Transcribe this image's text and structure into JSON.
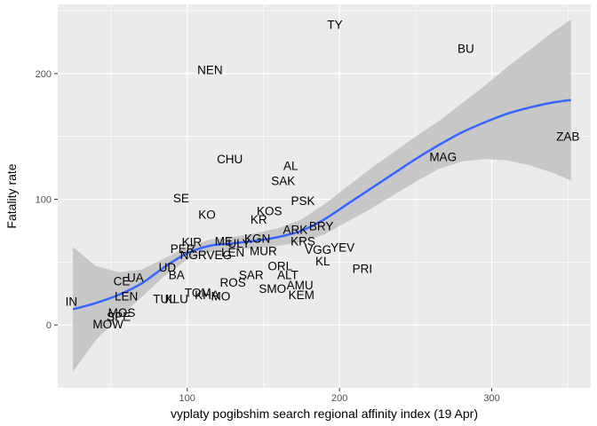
{
  "chart_data": {
    "type": "scatter",
    "xlabel": "vyplaty pogibshim search regional affinity index (19 Apr)",
    "ylabel": "Fatality rate",
    "xlim": [
      15,
      365
    ],
    "ylim": [
      -50,
      255
    ],
    "x_ticks": [
      100,
      200,
      300
    ],
    "y_ticks": [
      0,
      100,
      200
    ],
    "x_tick_labels": [
      "100",
      "200",
      "300"
    ],
    "y_tick_labels": [
      "0",
      "100",
      "200"
    ],
    "grid": true,
    "background": "#ebebeb",
    "smooth_color": "#3366ff",
    "ribbon_color": "#bebebe",
    "points": [
      {
        "label": "TY",
        "x": 197,
        "y": 239
      },
      {
        "label": "BU",
        "x": 283,
        "y": 220
      },
      {
        "label": "NEN",
        "x": 115,
        "y": 203
      },
      {
        "label": "ZAB",
        "x": 350,
        "y": 150
      },
      {
        "label": "MAG",
        "x": 268,
        "y": 134
      },
      {
        "label": "CHU",
        "x": 128,
        "y": 132
      },
      {
        "label": "AL",
        "x": 168,
        "y": 127
      },
      {
        "label": "SAK",
        "x": 163,
        "y": 115
      },
      {
        "label": "SE",
        "x": 96,
        "y": 101
      },
      {
        "label": "PSK",
        "x": 176,
        "y": 99
      },
      {
        "label": "KOS",
        "x": 154,
        "y": 91
      },
      {
        "label": "KO",
        "x": 113,
        "y": 88
      },
      {
        "label": "KR",
        "x": 147,
        "y": 84
      },
      {
        "label": "BRY",
        "x": 188,
        "y": 79
      },
      {
        "label": "ARK",
        "x": 171,
        "y": 76
      },
      {
        "label": "KGN",
        "x": 146,
        "y": 69
      },
      {
        "label": "ME",
        "x": 124,
        "y": 67
      },
      {
        "label": "KRS",
        "x": 176,
        "y": 67
      },
      {
        "label": "ULY",
        "x": 134,
        "y": 65
      },
      {
        "label": "KIR",
        "x": 103,
        "y": 66
      },
      {
        "label": "PER",
        "x": 97,
        "y": 61
      },
      {
        "label": "MUR",
        "x": 150,
        "y": 59
      },
      {
        "label": "VGG",
        "x": 186,
        "y": 60
      },
      {
        "label": "YEV",
        "x": 202,
        "y": 62
      },
      {
        "label": "VEG",
        "x": 121,
        "y": 56
      },
      {
        "label": "LEN",
        "x": 130,
        "y": 58
      },
      {
        "label": "NGR",
        "x": 104,
        "y": 56
      },
      {
        "label": "KL",
        "x": 189,
        "y": 51
      },
      {
        "label": "PRI",
        "x": 215,
        "y": 45
      },
      {
        "label": "UD",
        "x": 87,
        "y": 46
      },
      {
        "label": "ORL",
        "x": 161,
        "y": 47
      },
      {
        "label": "BA",
        "x": 93,
        "y": 40
      },
      {
        "label": "ALT",
        "x": 166,
        "y": 40
      },
      {
        "label": "UA",
        "x": 66,
        "y": 38
      },
      {
        "label": "SAR",
        "x": 142,
        "y": 40
      },
      {
        "label": "ROS",
        "x": 130,
        "y": 34
      },
      {
        "label": "CE",
        "x": 57,
        "y": 35
      },
      {
        "label": "AMU",
        "x": 174,
        "y": 32
      },
      {
        "label": "SMO",
        "x": 156,
        "y": 29
      },
      {
        "label": "KEM",
        "x": 175,
        "y": 24
      },
      {
        "label": "TOM",
        "x": 107,
        "y": 26
      },
      {
        "label": "KHA",
        "x": 113,
        "y": 24
      },
      {
        "label": "MO",
        "x": 122,
        "y": 23
      },
      {
        "label": "LEN",
        "x": 60,
        "y": 23
      },
      {
        "label": "TUL",
        "x": 85,
        "y": 21
      },
      {
        "label": "KLU",
        "x": 93,
        "y": 21
      },
      {
        "label": "IN",
        "x": 24,
        "y": 19
      },
      {
        "label": "MOS",
        "x": 57,
        "y": 10
      },
      {
        "label": "SPE",
        "x": 55,
        "y": 7
      },
      {
        "label": "MOW",
        "x": 48,
        "y": 1
      }
    ],
    "smooth": [
      [
        25,
        12.5
      ],
      [
        40,
        17.5
      ],
      [
        55,
        24
      ],
      [
        70,
        33
      ],
      [
        85,
        46
      ],
      [
        100,
        57
      ],
      [
        115,
        63
      ],
      [
        130,
        65
      ],
      [
        145,
        67
      ],
      [
        160,
        70
      ],
      [
        175,
        75
      ],
      [
        190,
        84
      ],
      [
        205,
        96
      ],
      [
        220,
        108
      ],
      [
        235,
        120
      ],
      [
        250,
        132
      ],
      [
        265,
        143
      ],
      [
        280,
        153
      ],
      [
        295,
        161
      ],
      [
        310,
        168
      ],
      [
        325,
        173
      ],
      [
        340,
        177
      ],
      [
        352,
        179
      ]
    ],
    "ribbon_upper": [
      [
        25,
        62
      ],
      [
        40,
        47
      ],
      [
        55,
        42
      ],
      [
        70,
        44
      ],
      [
        85,
        53
      ],
      [
        100,
        62
      ],
      [
        115,
        68
      ],
      [
        130,
        70
      ],
      [
        145,
        73
      ],
      [
        160,
        77
      ],
      [
        175,
        84
      ],
      [
        190,
        96
      ],
      [
        205,
        110
      ],
      [
        220,
        124
      ],
      [
        235,
        137
      ],
      [
        250,
        150
      ],
      [
        265,
        162
      ],
      [
        280,
        176
      ],
      [
        295,
        190
      ],
      [
        310,
        205
      ],
      [
        325,
        219
      ],
      [
        340,
        233
      ],
      [
        352,
        243
      ]
    ],
    "ribbon_lower": [
      [
        25,
        -37
      ],
      [
        40,
        -12
      ],
      [
        55,
        6
      ],
      [
        70,
        22
      ],
      [
        85,
        39
      ],
      [
        100,
        52
      ],
      [
        115,
        58
      ],
      [
        130,
        60
      ],
      [
        145,
        61
      ],
      [
        160,
        63
      ],
      [
        175,
        66
      ],
      [
        190,
        72
      ],
      [
        205,
        82
      ],
      [
        220,
        92
      ],
      [
        235,
        103
      ],
      [
        250,
        114
      ],
      [
        265,
        124
      ],
      [
        280,
        130
      ],
      [
        295,
        132
      ],
      [
        310,
        131
      ],
      [
        325,
        127
      ],
      [
        340,
        121
      ],
      [
        352,
        115
      ]
    ]
  }
}
